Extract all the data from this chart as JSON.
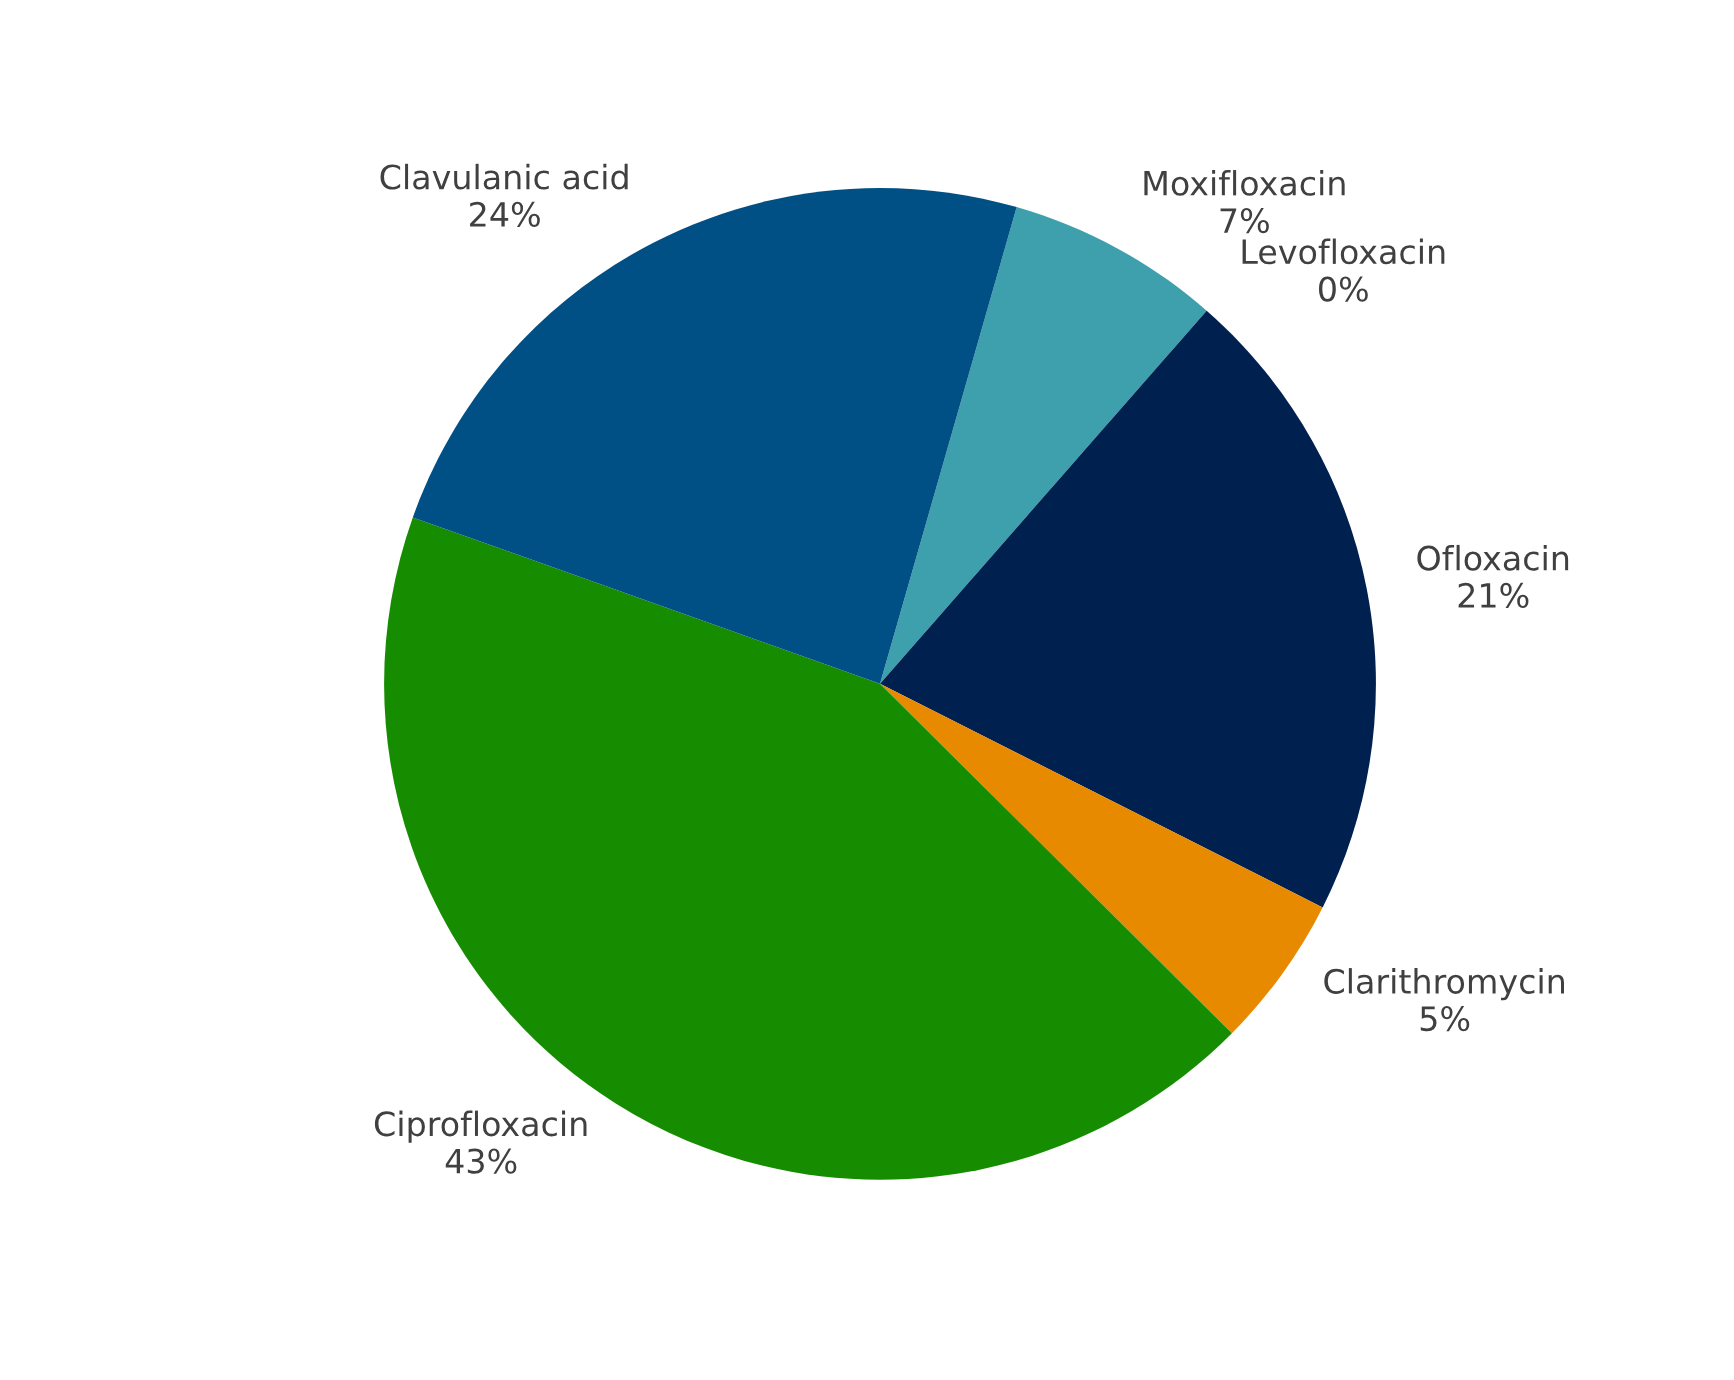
{
  "chart_data": {
    "type": "pie",
    "categories": [
      "Moxifloxacin",
      "Levofloxacin",
      "Ofloxacin",
      "Clarithromycin",
      "Ciprofloxacin",
      "Clavulanic acid"
    ],
    "values": [
      7,
      0,
      21,
      5,
      43,
      24
    ],
    "value_labels": [
      "7%",
      "0%",
      "21%",
      "5%",
      "43%",
      "24%"
    ],
    "colors": [
      "#3fa0ad",
      "#6fb6c8",
      "#002050",
      "#e88a00",
      "#168c00",
      "#005085"
    ]
  }
}
